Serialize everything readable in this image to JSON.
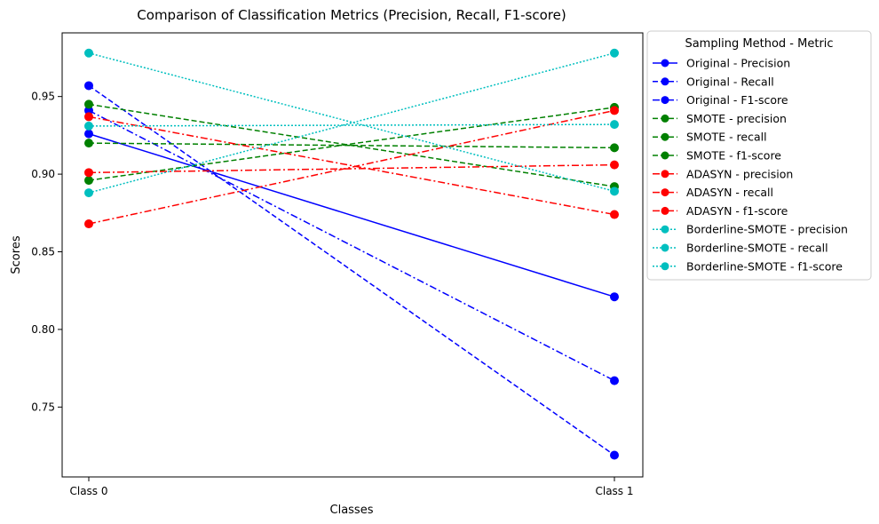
{
  "chart_data": {
    "type": "line",
    "title": "Comparison of Classification Metrics (Precision, Recall, F1-score)",
    "xlabel": "Classes",
    "ylabel": "Scores",
    "categories": [
      "Class 0",
      "Class 1"
    ],
    "ylim": [
      0.705,
      0.991
    ],
    "yticks": [
      0.75,
      0.8,
      0.85,
      0.9,
      0.95
    ],
    "ytick_labels": [
      "0.75",
      "0.80",
      "0.85",
      "0.90",
      "0.95"
    ],
    "grid": false,
    "legend_title": "Sampling Method - Metric",
    "legend_position": "outside-right",
    "series": [
      {
        "name": "Original - Precision",
        "values": [
          0.926,
          0.821
        ],
        "color": "#0000ff",
        "style": "solid"
      },
      {
        "name": "Original - Recall",
        "values": [
          0.957,
          0.719
        ],
        "color": "#0000ff",
        "style": "dashed"
      },
      {
        "name": "Original - F1-score",
        "values": [
          0.941,
          0.767
        ],
        "color": "#0000ff",
        "style": "dashdot"
      },
      {
        "name": "SMOTE - precision",
        "values": [
          0.945,
          0.892
        ],
        "color": "#008000",
        "style": "dashed"
      },
      {
        "name": "SMOTE - recall",
        "values": [
          0.896,
          0.943
        ],
        "color": "#008000",
        "style": "dashed"
      },
      {
        "name": "SMOTE - f1-score",
        "values": [
          0.92,
          0.917
        ],
        "color": "#008000",
        "style": "dashed"
      },
      {
        "name": "ADASYN - precision",
        "values": [
          0.937,
          0.874
        ],
        "color": "#ff0000",
        "style": "dashdot"
      },
      {
        "name": "ADASYN - recall",
        "values": [
          0.868,
          0.941
        ],
        "color": "#ff0000",
        "style": "dashdot"
      },
      {
        "name": "ADASYN - f1-score",
        "values": [
          0.901,
          0.906
        ],
        "color": "#ff0000",
        "style": "dashdot"
      },
      {
        "name": "Borderline-SMOTE - precision",
        "values": [
          0.888,
          0.978
        ],
        "color": "#00bfbf",
        "style": "dotted"
      },
      {
        "name": "Borderline-SMOTE - recall",
        "values": [
          0.978,
          0.889
        ],
        "color": "#00bfbf",
        "style": "dotted"
      },
      {
        "name": "Borderline-SMOTE - f1-score",
        "values": [
          0.931,
          0.932
        ],
        "color": "#00bfbf",
        "style": "dotted"
      }
    ]
  }
}
